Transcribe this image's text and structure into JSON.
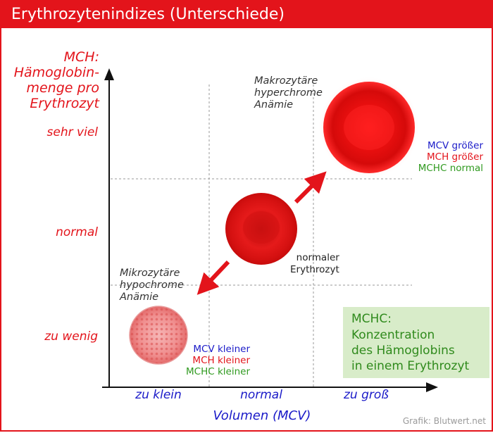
{
  "title": "Erythrozytenindizes (Unterschiede)",
  "y_axis": {
    "label_lines": [
      "MCH:",
      "Hämoglobin-",
      "menge pro",
      "Erythrozyt"
    ],
    "ticks": [
      "sehr viel",
      "normal",
      "zu wenig"
    ]
  },
  "x_axis": {
    "label": "Volumen (MCV)",
    "ticks": [
      "zu klein",
      "normal",
      "zu groß"
    ]
  },
  "cells": {
    "macro": {
      "caption_lines": [
        "Makrozytäre",
        "hyperchrome",
        "Anämie"
      ],
      "mcv_name": "MCV",
      "mcv_value": "größer",
      "mch_name": "MCH",
      "mch_value": "größer",
      "mchc_name": "MCHC",
      "mchc_value": "normal"
    },
    "normal": {
      "caption_lines": [
        "normaler",
        "Erythrozyt"
      ]
    },
    "micro": {
      "caption_lines": [
        "Mikrozytäre",
        "hypochrome",
        "Anämie"
      ],
      "mcv_name": "MCV",
      "mcv_value": "kleiner",
      "mch_name": "MCH",
      "mch_value": "kleiner",
      "mchc_name": "MCHC",
      "mchc_value": "kleiner"
    }
  },
  "mchc_box": {
    "lines": [
      "MCHC:",
      "Konzentration",
      "des Hämoglobins",
      "in einem Erythrozyt"
    ]
  },
  "credit": "Grafik: Blutwert.net",
  "colors": {
    "accent_red": "#e3141b",
    "mcv_blue": "#1a1ac8",
    "mchc_green": "#2f9a1f",
    "box_green": "#d8ecc9"
  }
}
